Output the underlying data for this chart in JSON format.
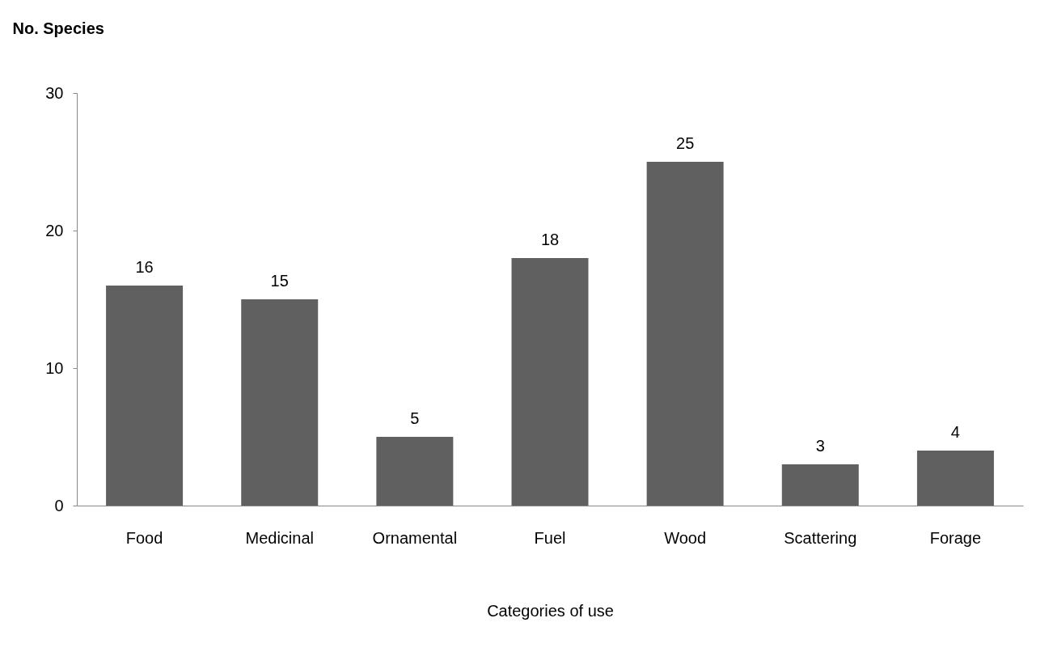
{
  "chart_data": {
    "type": "bar",
    "xlabel": "Categories of use",
    "ylabel": "No. Species",
    "categories": [
      "Food",
      "Medicinal",
      "Ornamental",
      "Fuel",
      "Wood",
      "Scattering",
      "Forage"
    ],
    "values": [
      16,
      15,
      5,
      18,
      25,
      3,
      4
    ],
    "color": "#606060",
    "ylim": [
      0,
      30
    ],
    "yticks": [
      0,
      10,
      20,
      30
    ],
    "grid": false,
    "data_labels": true
  }
}
